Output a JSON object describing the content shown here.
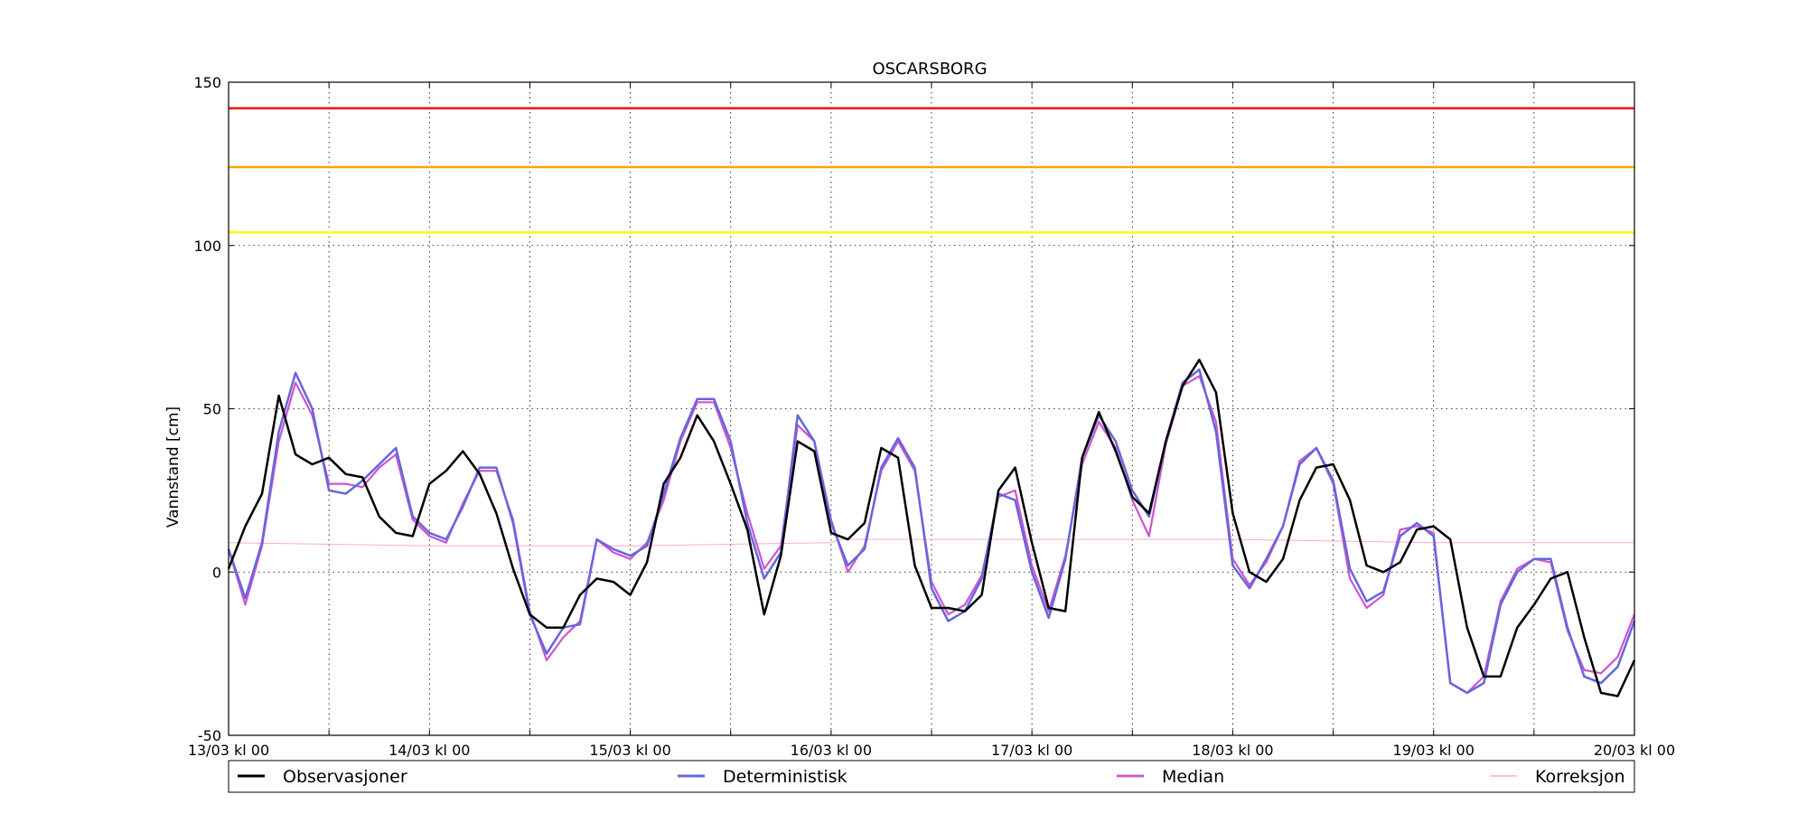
{
  "chart_data": {
    "type": "line",
    "title": "OSCARSBORG",
    "xlabel": "",
    "ylabel": "Vannstand [cm]",
    "ylim": [
      -50,
      150
    ],
    "yticks": [
      -50,
      0,
      50,
      100,
      150
    ],
    "xlim": [
      "13/03 kl 00",
      "20/03 kl 00"
    ],
    "xticks": [
      "13/03 kl 00",
      "14/03 kl 00",
      "15/03 kl 00",
      "16/03 kl 00",
      "17/03 kl 00",
      "18/03 kl 00",
      "19/03 kl 00",
      "20/03 kl 00"
    ],
    "grid": true,
    "legend_position": "bottom",
    "thresholds": [
      {
        "value": 142,
        "color": "#ff0000"
      },
      {
        "value": 124,
        "color": "#ffa500"
      },
      {
        "value": 104,
        "color": "#ffff00"
      }
    ],
    "series": [
      {
        "name": "Observasjoner",
        "color": "#000000",
        "hours": [
          0,
          2,
          4,
          6,
          8,
          10,
          12,
          14,
          16,
          18,
          20,
          22,
          24,
          26,
          28,
          30,
          32,
          34,
          36,
          38,
          40,
          42,
          44,
          46,
          48,
          50,
          52,
          54,
          56,
          58,
          60,
          62,
          64,
          66,
          68,
          70,
          72,
          74,
          76,
          78,
          80,
          82,
          84,
          86,
          88,
          90,
          92,
          94,
          96,
          98,
          100,
          102,
          104,
          106,
          108,
          110,
          112,
          114,
          116,
          118,
          120,
          122,
          124,
          126,
          128,
          130,
          132,
          134,
          136,
          138,
          140,
          142,
          144,
          146,
          148,
          150,
          152,
          154,
          156,
          158,
          160,
          162,
          164,
          166,
          168
        ],
        "values": [
          1,
          14,
          24,
          54,
          36,
          33,
          35,
          30,
          29,
          17,
          12,
          11,
          27,
          31,
          37,
          30,
          18,
          1,
          -13,
          -17,
          -17,
          -7,
          -2,
          -3,
          -7,
          3,
          27,
          35,
          48,
          40,
          27,
          13,
          -13,
          5,
          40,
          37,
          12,
          10,
          15,
          38,
          35,
          2,
          -11,
          -11,
          -12,
          -7,
          25,
          32,
          9,
          -11,
          -12,
          35,
          49,
          37,
          23,
          18,
          40,
          57,
          65,
          55,
          18,
          0,
          -3,
          4,
          22,
          32,
          33,
          22,
          2,
          0,
          3,
          13,
          14,
          10,
          -17,
          -32,
          -32,
          -17,
          -10,
          -2,
          0,
          -20,
          -37,
          -38,
          -27
        ]
      },
      {
        "name": "Deterministisk",
        "color": "#6666dd",
        "hours": [
          0,
          2,
          4,
          6,
          8,
          10,
          12,
          14,
          16,
          18,
          20,
          22,
          24,
          26,
          28,
          30,
          32,
          34,
          36,
          38,
          40,
          42,
          44,
          46,
          48,
          50,
          52,
          54,
          56,
          58,
          60,
          62,
          64,
          66,
          68,
          70,
          72,
          74,
          76,
          78,
          80,
          82,
          84,
          86,
          88,
          90,
          92,
          94,
          96,
          98,
          100,
          102,
          104,
          106,
          108,
          110,
          112,
          114,
          116,
          118,
          120,
          122,
          124,
          126,
          128,
          130,
          132,
          134,
          136,
          138,
          140,
          142,
          144,
          146,
          148,
          150,
          152,
          154,
          156,
          158,
          160,
          162,
          164,
          166,
          168
        ],
        "values": [
          7,
          -8,
          9,
          43,
          61,
          50,
          25,
          24,
          28,
          33,
          38,
          17,
          12,
          10,
          20,
          32,
          32,
          15,
          -13,
          -25,
          -17,
          -16,
          10,
          7,
          5,
          8,
          24,
          41,
          53,
          53,
          40,
          15,
          -2,
          6,
          48,
          40,
          15,
          2,
          7,
          32,
          41,
          32,
          -5,
          -15,
          -12,
          -2,
          24,
          22,
          0,
          -14,
          4,
          35,
          48,
          40,
          25,
          17,
          40,
          58,
          62,
          43,
          2,
          -5,
          4,
          14,
          33,
          38,
          28,
          1,
          -9,
          -6,
          11,
          15,
          11,
          -34,
          -37,
          -34,
          -10,
          0,
          4,
          4,
          -17,
          -32,
          -34,
          -29,
          -15
        ]
      },
      {
        "name": "Median",
        "color": "#cc55cc",
        "hours": [
          0,
          2,
          4,
          6,
          8,
          10,
          12,
          14,
          16,
          18,
          20,
          22,
          24,
          26,
          28,
          30,
          32,
          34,
          36,
          38,
          40,
          42,
          44,
          46,
          48,
          50,
          52,
          54,
          56,
          58,
          60,
          62,
          64,
          66,
          68,
          70,
          72,
          74,
          76,
          78,
          80,
          82,
          84,
          86,
          88,
          90,
          92,
          94,
          96,
          98,
          100,
          102,
          104,
          106,
          108,
          110,
          112,
          114,
          116,
          118,
          120,
          122,
          124,
          126,
          128,
          130,
          132,
          134,
          136,
          138,
          140,
          142,
          144,
          146,
          148,
          150,
          152,
          154,
          156,
          158,
          160,
          162,
          164,
          166,
          168
        ],
        "values": [
          7,
          -10,
          8,
          40,
          58,
          48,
          27,
          27,
          26,
          32,
          36,
          16,
          11,
          9,
          21,
          31,
          31,
          16,
          -12,
          -27,
          -20,
          -15,
          10,
          6,
          4,
          9,
          22,
          40,
          52,
          52,
          38,
          18,
          1,
          8,
          45,
          40,
          16,
          0,
          8,
          31,
          40,
          31,
          -3,
          -13,
          -10,
          -1,
          23,
          25,
          2,
          -12,
          5,
          33,
          46,
          38,
          22,
          11,
          39,
          57,
          60,
          46,
          4,
          -4,
          3,
          14,
          34,
          38,
          27,
          -2,
          -11,
          -7,
          13,
          14,
          12,
          -34,
          -37,
          -32,
          -9,
          1,
          4,
          3,
          -18,
          -30,
          -31,
          -26,
          -13
        ]
      },
      {
        "name": "Korreksjon",
        "color": "#ffaacc",
        "hours": [
          0,
          24,
          48,
          72,
          73,
          96,
          120,
          144,
          168
        ],
        "values": [
          9,
          8,
          8,
          9,
          10,
          10,
          10,
          9,
          9
        ]
      }
    ]
  }
}
